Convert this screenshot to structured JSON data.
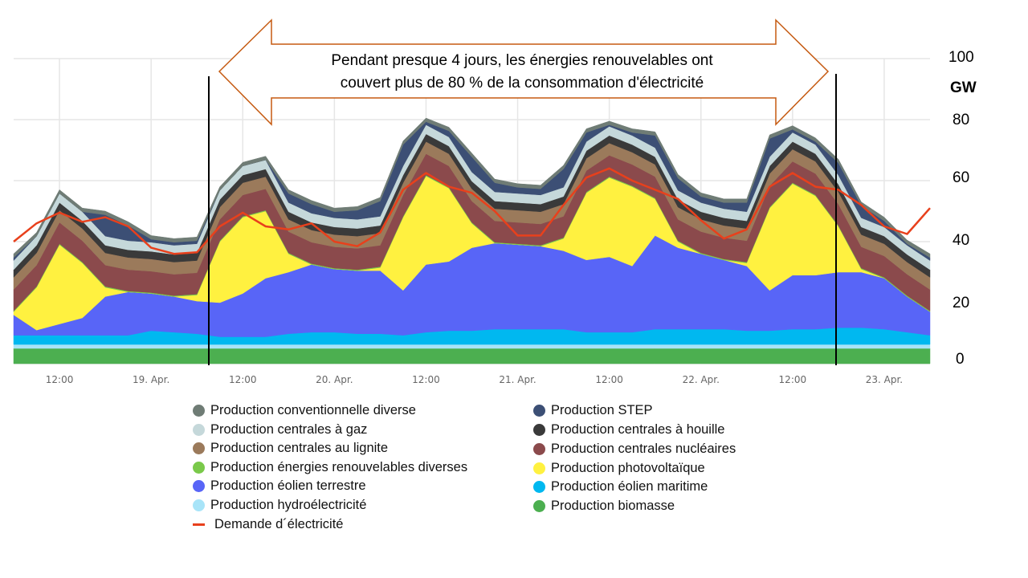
{
  "annotation": {
    "line1": "Pendant presque 4 jours, les énergies renouvelables ont",
    "line2": "couvert plus de 80 % de la consommation d'électricité",
    "arrow_color": "#c55a11"
  },
  "chart_data": {
    "type": "area",
    "stacked": true,
    "ylabel": "GW",
    "ylim": [
      0,
      100
    ],
    "yticks": [
      "0",
      "20",
      "40",
      "60",
      "80",
      "100"
    ],
    "xticks": [
      "12:00",
      "19. Apr.",
      "12:00",
      "20. Apr.",
      "12:00",
      "21. Apr.",
      "12:00",
      "22. Apr.",
      "12:00",
      "23. Apr."
    ],
    "grid": true,
    "legend_position": "bottom",
    "x": [
      "18. Apr 06:00",
      "18. Apr 09:00",
      "18. Apr 12:00",
      "18. Apr 15:00",
      "18. Apr 18:00",
      "18. Apr 21:00",
      "19. Apr 00:00",
      "19. Apr 03:00",
      "19. Apr 06:00",
      "19. Apr 09:00",
      "19. Apr 12:00",
      "19. Apr 15:00",
      "19. Apr 18:00",
      "19. Apr 21:00",
      "20. Apr 00:00",
      "20. Apr 03:00",
      "20. Apr 06:00",
      "20. Apr 09:00",
      "20. Apr 12:00",
      "20. Apr 15:00",
      "20. Apr 18:00",
      "20. Apr 21:00",
      "21. Apr 00:00",
      "21. Apr 03:00",
      "21. Apr 06:00",
      "21. Apr 09:00",
      "21. Apr 12:00",
      "21. Apr 15:00",
      "21. Apr 18:00",
      "21. Apr 21:00",
      "22. Apr 00:00",
      "22. Apr 03:00",
      "22. Apr 06:00",
      "22. Apr 09:00",
      "22. Apr 12:00",
      "22. Apr 15:00",
      "22. Apr 18:00",
      "22. Apr 21:00",
      "23. Apr 00:00",
      "23. Apr 03:00",
      "23. Apr 06:00"
    ],
    "highlight_range": [
      "19. Apr 07:00",
      "22. Apr 15:00"
    ],
    "series": [
      {
        "name": "Production biomasse",
        "color": "#4caf50",
        "values": [
          5,
          5,
          5,
          5,
          5,
          5,
          5,
          5,
          5,
          5,
          5,
          5,
          5,
          5,
          5,
          5,
          5,
          5,
          5,
          5,
          5,
          5,
          5,
          5,
          5,
          5,
          5,
          5,
          5,
          5,
          5,
          5,
          5,
          5,
          5,
          5,
          5,
          5,
          5,
          5,
          5
        ]
      },
      {
        "name": "Production hydroélectricité",
        "color": "#a8e4f8",
        "values": [
          1.3,
          1.3,
          1.3,
          1.3,
          1.3,
          1.3,
          1.3,
          1.3,
          1.3,
          1.3,
          1.3,
          1.3,
          1.3,
          1.3,
          1.3,
          1.3,
          1.3,
          1.3,
          1.3,
          1.3,
          1.3,
          1.3,
          1.3,
          1.3,
          1.3,
          1.3,
          1.3,
          1.3,
          1.3,
          1.3,
          1.3,
          1.3,
          1.3,
          1.3,
          1.3,
          1.3,
          1.3,
          1.3,
          1.3,
          1.3,
          1.3
        ]
      },
      {
        "name": "Production éolien maritime",
        "color": "#00b8f0",
        "values": [
          3,
          3,
          3,
          3,
          3,
          3,
          4.5,
          4,
          3.5,
          2.5,
          2.5,
          2.5,
          3.5,
          4,
          4,
          3.5,
          3.5,
          3,
          4,
          4.5,
          4.5,
          5,
          5,
          5,
          5,
          4,
          4,
          4,
          5,
          5,
          5,
          5,
          4.5,
          4.5,
          5,
          5,
          5.5,
          5.5,
          5,
          4,
          3
        ]
      },
      {
        "name": "Production éolien terrestre",
        "color": "#5865f7",
        "values": [
          6.7,
          1.7,
          3.7,
          5.7,
          12.7,
          14.2,
          12.2,
          11.7,
          10.7,
          11.2,
          14.2,
          19.2,
          20.2,
          22.2,
          20.7,
          20.7,
          20.7,
          14.7,
          22.2,
          22.7,
          27.2,
          28.2,
          27.7,
          27.2,
          25.7,
          23.7,
          24.7,
          21.7,
          30.7,
          26.7,
          24.7,
          22.7,
          21.2,
          13.2,
          17.7,
          17.7,
          18.2,
          18.2,
          16.7,
          11.7,
          7.7
        ]
      },
      {
        "name": "Production photovoltaïque",
        "color": "#fff140",
        "values": [
          1,
          14,
          26,
          18,
          3,
          0,
          0,
          0,
          2,
          20,
          25,
          22,
          6,
          0,
          0,
          0,
          1,
          24,
          29,
          24,
          8,
          0,
          0,
          0,
          4,
          22,
          26,
          26,
          12,
          2,
          0,
          0,
          1,
          27,
          30,
          26,
          15,
          1,
          0,
          0,
          0
        ]
      },
      {
        "name": "Production énergies renouvelables diverses",
        "color": "#7ac94a",
        "values": [
          0.3,
          0.3,
          0.3,
          0.3,
          0.3,
          0.3,
          0.3,
          0.3,
          0.3,
          0.3,
          0.3,
          0.3,
          0.3,
          0.3,
          0.3,
          0.3,
          0.3,
          0.3,
          0.3,
          0.3,
          0.3,
          0.3,
          0.3,
          0.3,
          0.3,
          0.3,
          0.3,
          0.3,
          0.3,
          0.3,
          0.3,
          0.3,
          0.3,
          0.3,
          0.3,
          0.3,
          0.3,
          0.3,
          0.3,
          0.3,
          0.3
        ]
      },
      {
        "name": "Production centrales nucléaires",
        "color": "#8b4a4c",
        "values": [
          7,
          7,
          7,
          7,
          7,
          7,
          7,
          7,
          7,
          7,
          7,
          7,
          7,
          7,
          7,
          7,
          7,
          7,
          7,
          7,
          7,
          7,
          7,
          7,
          7,
          7,
          7,
          7,
          7,
          7,
          7,
          7,
          7,
          7,
          7,
          7,
          7,
          7,
          7,
          7,
          7
        ]
      },
      {
        "name": "Production centrales au lignite",
        "color": "#9b7a5b",
        "values": [
          4,
          4,
          4,
          4,
          4,
          4,
          4,
          4,
          4,
          4,
          4,
          4,
          4,
          4,
          4,
          4,
          4,
          4,
          4,
          4,
          4,
          4,
          4,
          4,
          4,
          4,
          4,
          4,
          4,
          4,
          4,
          4,
          4,
          4,
          4,
          4,
          4,
          4,
          4,
          4,
          4
        ]
      },
      {
        "name": "Production centrales à houille",
        "color": "#3a3a3a",
        "values": [
          2.5,
          2.5,
          2.5,
          2.5,
          2.5,
          2.5,
          2.5,
          2.5,
          2.5,
          2.5,
          2.5,
          2.5,
          2.5,
          2.5,
          2.5,
          2.5,
          2.5,
          2.5,
          2.5,
          2.5,
          2.5,
          2.5,
          2.5,
          2.5,
          2.5,
          2.5,
          2.5,
          2.5,
          2.5,
          2.5,
          2.5,
          2.5,
          2.5,
          2.5,
          2.5,
          2.5,
          2.5,
          2.5,
          2.5,
          2.5,
          2.5
        ]
      },
      {
        "name": "Production centrales à gaz",
        "color": "#c5d8da",
        "values": [
          3,
          3,
          3,
          3,
          3,
          3,
          3,
          3,
          3,
          3,
          3,
          3,
          3,
          3,
          3,
          3,
          3,
          3,
          3,
          3,
          3,
          3,
          3,
          3,
          3,
          3,
          3,
          3,
          3,
          3,
          3,
          3,
          3,
          3,
          3,
          3,
          3,
          3,
          3,
          3,
          3
        ]
      },
      {
        "name": "Production STEP",
        "color": "#3c4f75",
        "values": [
          1,
          0,
          0,
          0,
          7,
          5,
          1,
          1,
          1,
          0,
          0,
          0,
          3,
          3,
          2,
          3,
          5,
          7,
          1,
          2,
          5,
          3,
          2,
          2,
          6,
          3,
          0.5,
          1,
          4,
          4,
          2,
          2,
          3,
          6,
          1,
          1,
          4,
          4,
          2,
          0.5,
          1
        ]
      },
      {
        "name": "Production conventionnelle diverse",
        "color": "#6f7c75",
        "values": [
          1.2,
          1.2,
          1.2,
          1.2,
          1.2,
          1.2,
          1.2,
          1.2,
          1.2,
          1.2,
          1.2,
          1.2,
          1.2,
          1.2,
          1.2,
          1.2,
          1.2,
          1.2,
          1.2,
          1.2,
          1.2,
          1.2,
          1.2,
          1.2,
          1.2,
          1.2,
          1.2,
          1.2,
          1.2,
          1.2,
          1.2,
          1.2,
          1.2,
          1.2,
          1.2,
          1.2,
          1.2,
          1.2,
          1.2,
          1.2,
          1.2
        ]
      }
    ],
    "line": {
      "name": "Demande d´électricité",
      "color": "#e8401c",
      "values": [
        40,
        46,
        49.5,
        46.5,
        48,
        45,
        38,
        36,
        36.5,
        45,
        49.5,
        45,
        44,
        46,
        40,
        38.5,
        43,
        57,
        62.5,
        58,
        56,
        50,
        42,
        42,
        52,
        61,
        64,
        60,
        57,
        54,
        47,
        41,
        44,
        58,
        62.5,
        58,
        57,
        52,
        45,
        42.5,
        51
      ]
    }
  },
  "legend": {
    "left": [
      {
        "label": "Production conventionnelle diverse",
        "color": "#6f7c75"
      },
      {
        "label": "Production centrales à gaz",
        "color": "#c5d8da"
      },
      {
        "label": "Production centrales au lignite",
        "color": "#9b7a5b"
      },
      {
        "label": "Production énergies renouvelables diverses",
        "color": "#7ac94a"
      },
      {
        "label": "Production éolien terrestre",
        "color": "#5865f7"
      },
      {
        "label": "Production hydroélectricité",
        "color": "#a8e4f8"
      },
      {
        "label": "Demande d´électricité",
        "color": "#e8401c"
      }
    ],
    "right": [
      {
        "label": "Production STEP",
        "color": "#3c4f75"
      },
      {
        "label": "Production centrales à houille",
        "color": "#3a3a3a"
      },
      {
        "label": "Production centrales nucléaires",
        "color": "#8b4a4c"
      },
      {
        "label": "Production photovoltaïque",
        "color": "#fff140"
      },
      {
        "label": "Production éolien maritime",
        "color": "#00b8f0"
      },
      {
        "label": "Production biomasse",
        "color": "#4caf50"
      }
    ]
  }
}
